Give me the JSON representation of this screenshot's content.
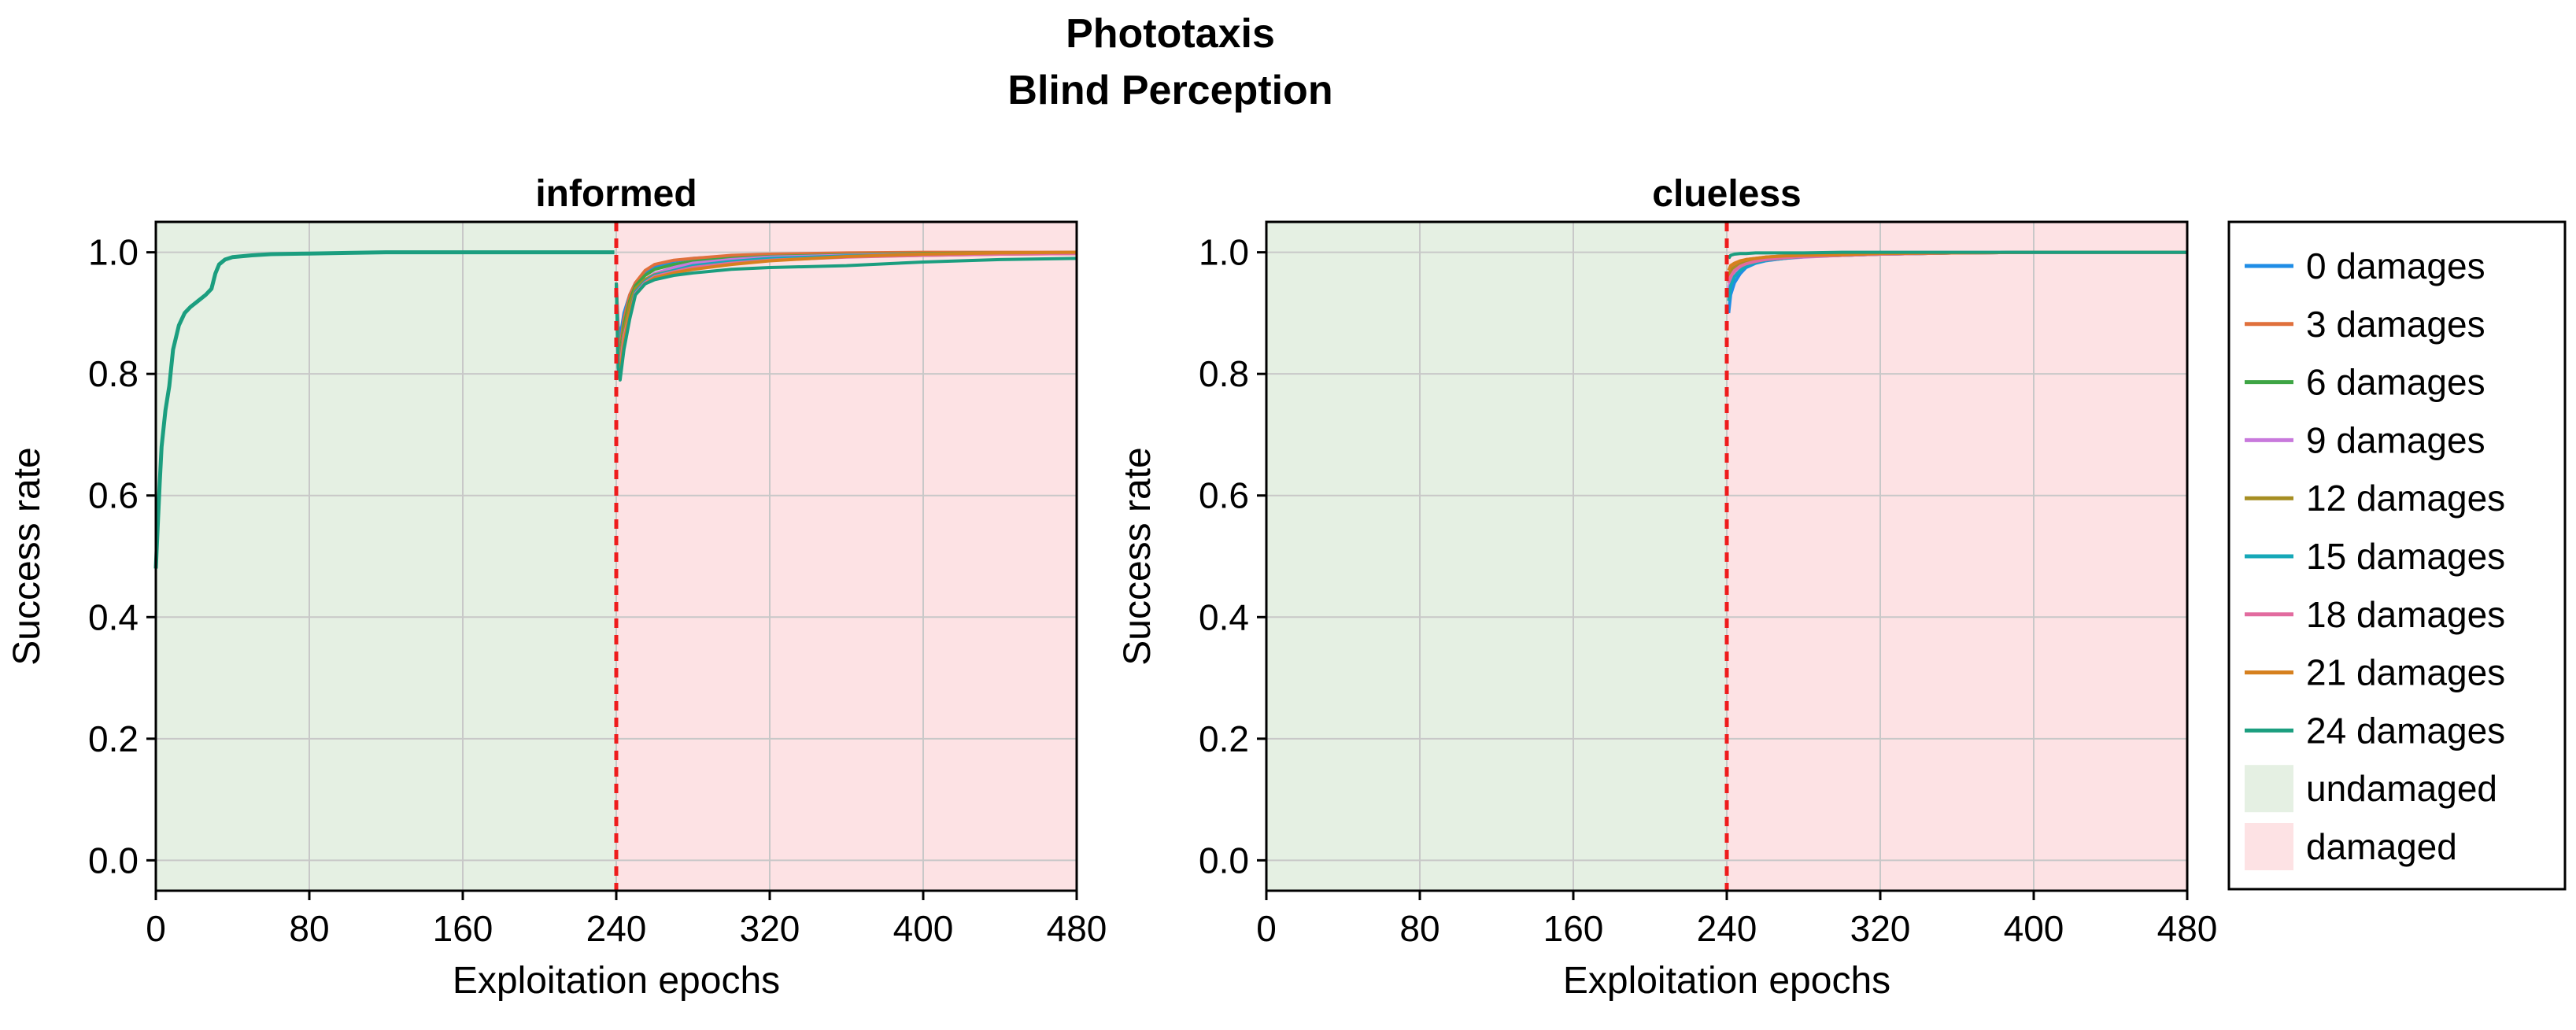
{
  "figure": {
    "title_line1": "Phototaxis",
    "title_line2": "Blind Perception"
  },
  "colors": {
    "undamaged": "#e5f0e3",
    "damaged": "#fde2e4",
    "damage_line": "#ee1c1c",
    "grid": "#c8c8c8"
  },
  "legend": {
    "placement": "right",
    "items": [
      {
        "label": "0 damages",
        "color": "#1f8de6",
        "kind": "line"
      },
      {
        "label": "3 damages",
        "color": "#e0703c",
        "kind": "line"
      },
      {
        "label": "6 damages",
        "color": "#3ea545",
        "kind": "line"
      },
      {
        "label": "9 damages",
        "color": "#c879dc",
        "kind": "line"
      },
      {
        "label": "12 damages",
        "color": "#a68e22",
        "kind": "line"
      },
      {
        "label": "15 damages",
        "color": "#16a8b8",
        "kind": "line"
      },
      {
        "label": "18 damages",
        "color": "#e26b9f",
        "kind": "line"
      },
      {
        "label": "21 damages",
        "color": "#d6801e",
        "kind": "line"
      },
      {
        "label": "24 damages",
        "color": "#1b9e7f",
        "kind": "line"
      },
      {
        "label": "undamaged",
        "color": "#e5f0e3",
        "kind": "patch"
      },
      {
        "label": "damaged",
        "color": "#fde2e4",
        "kind": "patch"
      }
    ]
  },
  "chart_data": [
    {
      "type": "line",
      "title": "informed",
      "xlabel": "Exploitation epochs",
      "ylabel": "Success rate",
      "xlim": [
        0,
        480
      ],
      "ylim": [
        -0.05,
        1.05
      ],
      "xticks": [
        0,
        80,
        160,
        240,
        320,
        400,
        480
      ],
      "yticks": [
        0.0,
        0.2,
        0.4,
        0.6,
        0.8,
        1.0
      ],
      "xtick_labels": [
        "0",
        "80",
        "160",
        "240",
        "320",
        "400",
        "480"
      ],
      "ytick_labels": [
        "0.0",
        "0.2",
        "0.4",
        "0.6",
        "0.8",
        "1.0"
      ],
      "grid": true,
      "damage_epoch": 240,
      "regions": [
        {
          "name": "undamaged",
          "from": 0,
          "to": 240
        },
        {
          "name": "damaged",
          "from": 240,
          "to": 480
        }
      ],
      "pre_damage": {
        "x": [
          0,
          1,
          2,
          3,
          5,
          7,
          9,
          12,
          15,
          18,
          22,
          26,
          29,
          31,
          33,
          36,
          40,
          50,
          60,
          80,
          100,
          120,
          160,
          200,
          239
        ],
        "y": [
          0.48,
          0.55,
          0.62,
          0.68,
          0.74,
          0.78,
          0.84,
          0.88,
          0.9,
          0.91,
          0.92,
          0.93,
          0.94,
          0.965,
          0.98,
          0.988,
          0.992,
          0.995,
          0.997,
          0.998,
          0.999,
          1.0,
          1.0,
          1.0,
          1.0
        ]
      },
      "series": [
        {
          "name": "0 damages",
          "x": [
            240,
            241,
            242,
            244,
            247,
            250,
            255,
            260,
            270,
            280,
            300,
            320,
            360,
            400,
            440,
            480
          ],
          "y": [
            0.95,
            0.88,
            0.86,
            0.9,
            0.93,
            0.95,
            0.965,
            0.975,
            0.985,
            0.99,
            0.994,
            0.996,
            0.998,
            0.999,
            0.999,
            1.0
          ]
        },
        {
          "name": "3 damages",
          "x": [
            240,
            241,
            242,
            244,
            247,
            250,
            255,
            260,
            270,
            280,
            300,
            320,
            360,
            400,
            440,
            480
          ],
          "y": [
            0.95,
            0.86,
            0.84,
            0.89,
            0.93,
            0.95,
            0.97,
            0.98,
            0.987,
            0.99,
            0.995,
            0.997,
            0.999,
            1.0,
            1.0,
            1.0
          ]
        },
        {
          "name": "6 damages",
          "x": [
            240,
            241,
            242,
            244,
            247,
            250,
            255,
            260,
            270,
            280,
            300,
            320,
            360,
            400,
            440,
            480
          ],
          "y": [
            0.95,
            0.85,
            0.83,
            0.88,
            0.92,
            0.945,
            0.962,
            0.972,
            0.98,
            0.985,
            0.99,
            0.993,
            0.996,
            0.998,
            0.999,
            0.999
          ]
        },
        {
          "name": "9 damages",
          "x": [
            240,
            241,
            242,
            244,
            247,
            250,
            255,
            260,
            270,
            280,
            300,
            320,
            360,
            400,
            440,
            480
          ],
          "y": [
            0.95,
            0.84,
            0.82,
            0.87,
            0.91,
            0.94,
            0.955,
            0.965,
            0.975,
            0.982,
            0.988,
            0.992,
            0.995,
            0.997,
            0.998,
            0.999
          ]
        },
        {
          "name": "12 damages",
          "x": [
            240,
            241,
            242,
            244,
            247,
            250,
            255,
            260,
            270,
            280,
            300,
            320,
            360,
            400,
            440,
            480
          ],
          "y": [
            0.95,
            0.84,
            0.82,
            0.87,
            0.915,
            0.94,
            0.955,
            0.963,
            0.97,
            0.976,
            0.983,
            0.988,
            0.993,
            0.995,
            0.997,
            0.998
          ]
        },
        {
          "name": "15 damages",
          "x": [
            240,
            241,
            242,
            244,
            247,
            250,
            255,
            260,
            270,
            280,
            300,
            320,
            360,
            400,
            440,
            480
          ],
          "y": [
            0.95,
            0.83,
            0.81,
            0.86,
            0.9,
            0.935,
            0.952,
            0.962,
            0.97,
            0.978,
            0.985,
            0.99,
            0.994,
            0.996,
            0.998,
            0.999
          ]
        },
        {
          "name": "18 damages",
          "x": [
            240,
            241,
            242,
            244,
            247,
            250,
            255,
            260,
            270,
            280,
            300,
            320,
            360,
            400,
            440,
            480
          ],
          "y": [
            0.95,
            0.83,
            0.81,
            0.86,
            0.9,
            0.932,
            0.95,
            0.96,
            0.968,
            0.975,
            0.982,
            0.987,
            0.992,
            0.995,
            0.997,
            0.998
          ]
        },
        {
          "name": "21 damages",
          "x": [
            240,
            241,
            242,
            244,
            247,
            250,
            255,
            260,
            270,
            280,
            300,
            320,
            360,
            400,
            440,
            480
          ],
          "y": [
            0.95,
            0.82,
            0.8,
            0.85,
            0.9,
            0.93,
            0.948,
            0.958,
            0.966,
            0.972,
            0.98,
            0.986,
            0.993,
            0.997,
            0.999,
            1.0
          ]
        },
        {
          "name": "24 damages",
          "x": [
            240,
            241,
            242,
            244,
            247,
            250,
            255,
            260,
            270,
            280,
            300,
            320,
            360,
            400,
            440,
            480
          ],
          "y": [
            0.95,
            0.81,
            0.79,
            0.84,
            0.89,
            0.93,
            0.948,
            0.955,
            0.962,
            0.966,
            0.972,
            0.975,
            0.978,
            0.984,
            0.988,
            0.99
          ]
        }
      ]
    },
    {
      "type": "line",
      "title": "clueless",
      "xlabel": "Exploitation epochs",
      "ylabel": "Success rate",
      "xlim": [
        0,
        480
      ],
      "ylim": [
        -0.05,
        1.05
      ],
      "xticks": [
        0,
        80,
        160,
        240,
        320,
        400,
        480
      ],
      "yticks": [
        0.0,
        0.2,
        0.4,
        0.6,
        0.8,
        1.0
      ],
      "xtick_labels": [
        "0",
        "80",
        "160",
        "240",
        "320",
        "400",
        "480"
      ],
      "ytick_labels": [
        "0.0",
        "0.2",
        "0.4",
        "0.6",
        "0.8",
        "1.0"
      ],
      "grid": true,
      "damage_epoch": 240,
      "regions": [
        {
          "name": "undamaged",
          "from": 0,
          "to": 240
        },
        {
          "name": "damaged",
          "from": 240,
          "to": 480
        }
      ],
      "series": [
        {
          "name": "0 damages",
          "x": [
            241,
            242,
            244,
            247,
            250,
            255,
            260,
            270,
            280,
            300,
            320,
            360,
            400,
            440,
            480
          ],
          "y": [
            0.9,
            0.93,
            0.95,
            0.965,
            0.975,
            0.982,
            0.986,
            0.99,
            0.993,
            0.995,
            0.997,
            0.999,
            1.0,
            1.0,
            1.0
          ]
        },
        {
          "name": "3 damages",
          "x": [
            241,
            242,
            244,
            247,
            250,
            255,
            260,
            270,
            280,
            300,
            320,
            360,
            400,
            440,
            480
          ],
          "y": [
            0.95,
            0.97,
            0.98,
            0.985,
            0.988,
            0.99,
            0.992,
            0.994,
            0.995,
            0.996,
            0.997,
            0.999,
            1.0,
            1.0,
            1.0
          ]
        },
        {
          "name": "6 damages",
          "x": [
            241,
            242,
            244,
            247,
            250,
            255,
            260,
            270,
            280,
            300,
            320,
            360,
            400,
            440,
            480
          ],
          "y": [
            0.93,
            0.95,
            0.965,
            0.975,
            0.98,
            0.985,
            0.988,
            0.991,
            0.993,
            0.995,
            0.997,
            0.999,
            1.0,
            1.0,
            1.0
          ]
        },
        {
          "name": "9 damages",
          "x": [
            241,
            242,
            244,
            247,
            250,
            255,
            260,
            270,
            280,
            300,
            320,
            360,
            400,
            440,
            480
          ],
          "y": [
            0.94,
            0.955,
            0.968,
            0.976,
            0.98,
            0.984,
            0.987,
            0.99,
            0.992,
            0.995,
            0.997,
            0.999,
            1.0,
            1.0,
            1.0
          ]
        },
        {
          "name": "12 damages",
          "x": [
            241,
            242,
            244,
            247,
            250,
            255,
            260,
            270,
            280,
            300,
            320,
            360,
            400,
            440,
            480
          ],
          "y": [
            0.96,
            0.97,
            0.975,
            0.98,
            0.984,
            0.987,
            0.99,
            0.992,
            0.994,
            0.996,
            0.998,
            0.999,
            1.0,
            1.0,
            1.0
          ]
        },
        {
          "name": "15 damages",
          "x": [
            241,
            242,
            244,
            247,
            250,
            255,
            260,
            270,
            280,
            300,
            320,
            360,
            400,
            440,
            480
          ],
          "y": [
            0.92,
            0.945,
            0.96,
            0.97,
            0.977,
            0.983,
            0.987,
            0.99,
            0.993,
            0.995,
            0.997,
            0.999,
            1.0,
            1.0,
            1.0
          ]
        },
        {
          "name": "18 damages",
          "x": [
            241,
            242,
            244,
            247,
            250,
            255,
            260,
            270,
            280,
            300,
            320,
            360,
            400,
            440,
            480
          ],
          "y": [
            0.95,
            0.96,
            0.97,
            0.977,
            0.981,
            0.985,
            0.988,
            0.991,
            0.993,
            0.995,
            0.997,
            0.999,
            1.0,
            1.0,
            1.0
          ]
        },
        {
          "name": "21 damages",
          "x": [
            241,
            242,
            244,
            247,
            250,
            255,
            260,
            270,
            280,
            300,
            320,
            360,
            400,
            440,
            480
          ],
          "y": [
            0.97,
            0.978,
            0.982,
            0.986,
            0.988,
            0.99,
            0.992,
            0.994,
            0.995,
            0.996,
            0.998,
            0.999,
            1.0,
            1.0,
            1.0
          ]
        },
        {
          "name": "24 damages",
          "x": [
            241,
            242,
            244,
            247,
            250,
            255,
            260,
            270,
            280,
            300,
            320,
            360,
            400,
            440,
            480
          ],
          "y": [
            0.99,
            0.995,
            0.997,
            0.998,
            0.998,
            0.999,
            0.999,
            0.999,
            0.999,
            1.0,
            1.0,
            1.0,
            1.0,
            1.0,
            1.0
          ]
        }
      ]
    }
  ]
}
